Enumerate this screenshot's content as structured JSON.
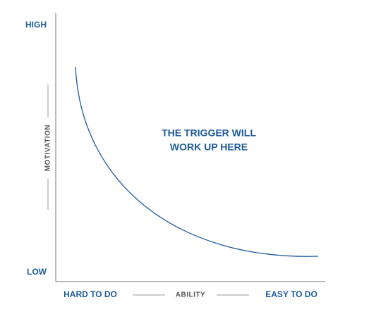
{
  "axes": {
    "y_high": "HIGH",
    "y_low": "LOW",
    "y_label": "MOTIVATION",
    "x_left": "HARD TO DO",
    "x_label": "ABILITY",
    "x_right": "EASY TO DO"
  },
  "annotation": {
    "lines": [
      "THE TRIGGER WILL",
      "WORK UP HERE"
    ]
  }
}
